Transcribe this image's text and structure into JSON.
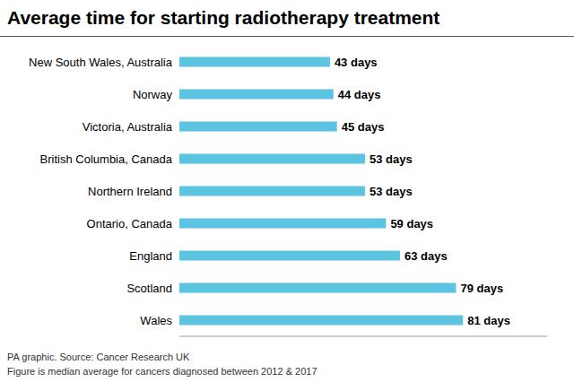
{
  "chart_data": {
    "type": "bar",
    "orientation": "horizontal",
    "title": "Average time for starting radiotherapy treatment",
    "categories": [
      "Wales",
      "Scotland",
      "England",
      "Ontario, Canada",
      "Northern Ireland",
      "British Columbia, Canada",
      "Victoria, Australia",
      "Norway",
      "New South Wales, Australia"
    ],
    "values": [
      81,
      79,
      63,
      59,
      53,
      53,
      45,
      44,
      43
    ],
    "value_labels": [
      "81 days",
      "79 days",
      "63 days",
      "59 days",
      "53 days",
      "53 days",
      "45 days",
      "44 days",
      "43 days"
    ],
    "data_labels": true,
    "color": "#5bc4e0",
    "xlim": [
      0,
      105
    ],
    "tick_labels": "y",
    "grid": false,
    "annotations": [
      "PA graphic. Source: Cancer Research UK",
      "Figure is median average for cancers diagnosed between 2012 & 2017"
    ]
  }
}
